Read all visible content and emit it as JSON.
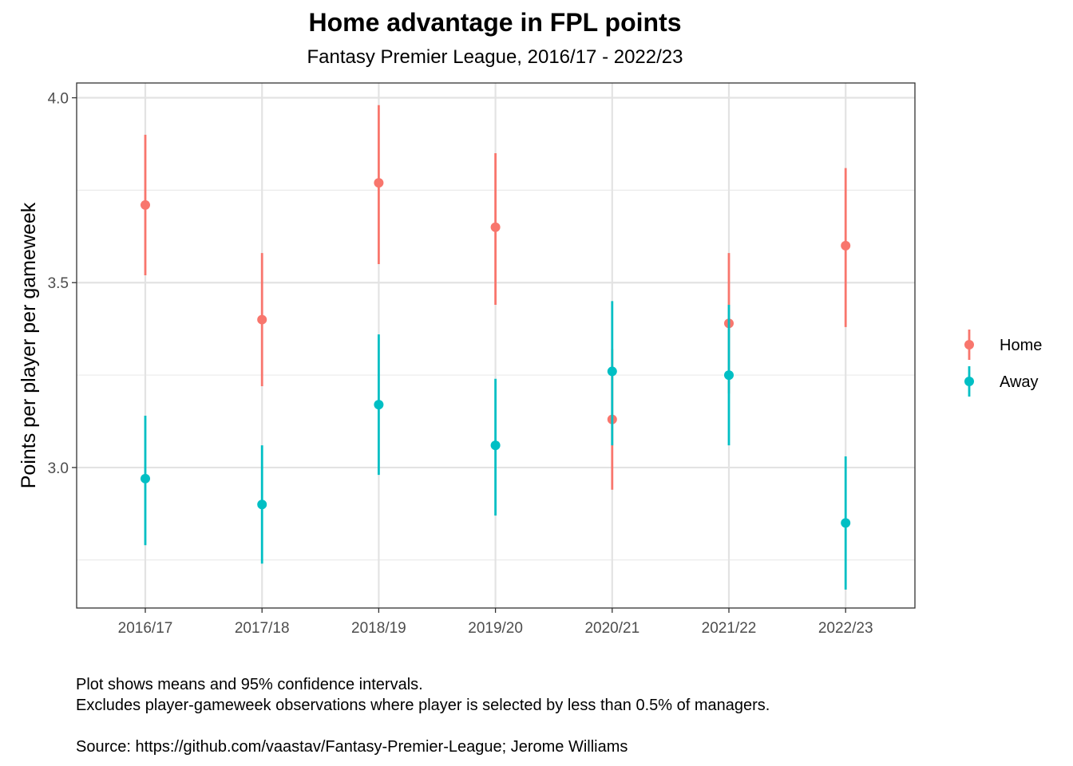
{
  "chart_data": {
    "type": "scatter",
    "title": "Home advantage in FPL points",
    "subtitle": "Fantasy Premier League, 2016/17 - 2022/23",
    "xlabel": "",
    "ylabel": "Points per player per gameweek",
    "ylim": [
      2.62,
      4.04
    ],
    "yticks": [
      "3.0",
      "3.5",
      "4.0"
    ],
    "ytick_values": [
      3.0,
      3.5,
      4.0
    ],
    "grid": true,
    "legend_position": "right",
    "categories": [
      "2016/17",
      "2017/18",
      "2018/19",
      "2019/20",
      "2020/21",
      "2021/22",
      "2022/23"
    ],
    "series": [
      {
        "name": "Home",
        "color": "#F8766D",
        "values": [
          3.71,
          3.4,
          3.77,
          3.65,
          3.13,
          3.39,
          3.6
        ],
        "lower": [
          3.52,
          3.22,
          3.55,
          3.44,
          2.94,
          3.2,
          3.38
        ],
        "upper": [
          3.9,
          3.58,
          3.98,
          3.85,
          3.32,
          3.58,
          3.81
        ]
      },
      {
        "name": "Away",
        "color": "#00BFC4",
        "values": [
          2.97,
          2.9,
          3.17,
          3.06,
          3.26,
          3.25,
          2.85
        ],
        "lower": [
          2.79,
          2.74,
          2.98,
          2.87,
          3.06,
          3.06,
          2.67
        ],
        "upper": [
          3.14,
          3.06,
          3.36,
          3.24,
          3.45,
          3.44,
          3.03
        ]
      }
    ],
    "caption": [
      "Plot shows means and 95% confidence intervals.",
      "Excludes player-gameweek observations where player is selected by less than 0.5% of managers.",
      "Source: https://github.com/vaastav/Fantasy-Premier-League; Jerome Williams"
    ]
  }
}
